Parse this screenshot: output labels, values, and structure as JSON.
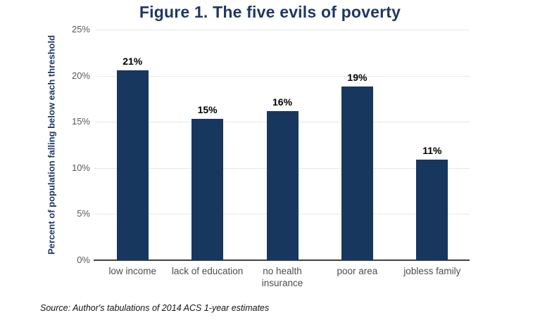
{
  "figure": {
    "title": "Figure 1. The five evils of poverty",
    "source_note": "Source: Author's tabulations of 2014 ACS 1-year estimates"
  },
  "chart_data": {
    "type": "bar",
    "title": "Figure 1. The five evils of poverty",
    "categories": [
      "low income",
      "lack of education",
      "no health insurance",
      "poor area",
      "jobless family"
    ],
    "values": [
      21,
      15,
      16,
      19,
      11
    ],
    "value_labels": [
      "21%",
      "15%",
      "16%",
      "19%",
      "11%"
    ],
    "precise_values": [
      20.6,
      15.35,
      16.15,
      18.8,
      10.9
    ],
    "xlabel": "",
    "ylabel": "Percent of population falling below each threshold",
    "ylim": [
      0,
      25
    ],
    "yticks": [
      0,
      5,
      10,
      15,
      20,
      25
    ],
    "ytick_labels": [
      "0%",
      "5%",
      "10%",
      "15%",
      "20%",
      "25%"
    ],
    "grid": "horizontal gridlines on, no vertical gridlines",
    "legend": "none",
    "source_note": "Source: Author's tabulations of 2014 ACS 1-year estimates"
  },
  "colors": {
    "title_text": "#1F3864",
    "y_axis_title_text": "#1F3864",
    "bar_fill": "#17375E",
    "data_label_text": "#000000",
    "tick_label_text": "#595959",
    "category_label_text": "#4D4D4D",
    "gridline": "#E7E7E7",
    "axis_line": "#3F3F3F",
    "background": "#FFFFFF"
  }
}
